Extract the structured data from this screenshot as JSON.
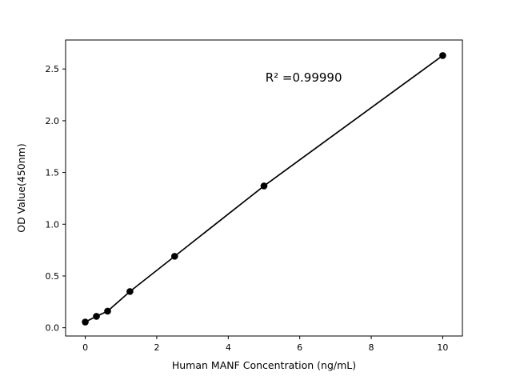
{
  "figure": {
    "background": "#ffffff"
  },
  "chart_data": {
    "type": "scatter",
    "title": "",
    "xlabel": "Human MANF Concentration (ng/mL)",
    "ylabel": "OD Value(450nm)",
    "annotation": "R² =0.99990",
    "annotation_pos_frac": {
      "x": 0.6,
      "y": 0.86
    },
    "x": [
      0,
      0.3125,
      0.625,
      1.25,
      2.5,
      5,
      10
    ],
    "y": [
      0.055,
      0.11,
      0.16,
      0.35,
      0.69,
      1.37,
      2.63
    ],
    "xlim": [
      -0.55,
      10.55
    ],
    "ylim": [
      -0.08,
      2.78
    ],
    "xticks": [
      0,
      2,
      4,
      6,
      8,
      10
    ],
    "xtick_labels": [
      "0",
      "2",
      "4",
      "6",
      "8",
      "10"
    ],
    "yticks": [
      0,
      0.5,
      1,
      1.5,
      2,
      2.5
    ],
    "ytick_labels": [
      "0.0",
      "0.5",
      "1.0",
      "1.5",
      "2.0",
      "2.5"
    ],
    "line_color": "#000000",
    "marker_color": "#000000",
    "grid": false,
    "legend": null
  }
}
